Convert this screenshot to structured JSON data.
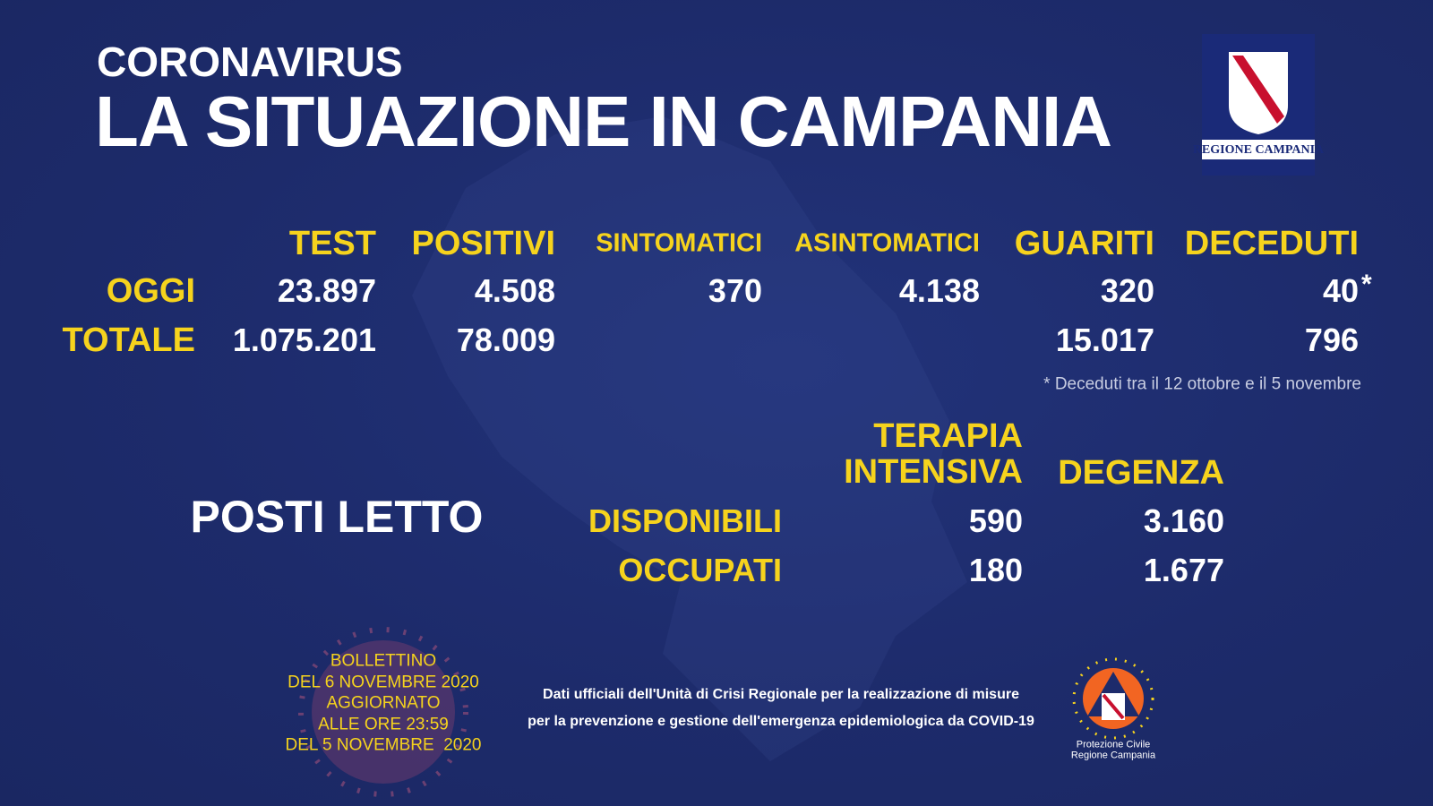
{
  "header": {
    "kicker": "CORONAVIRUS",
    "title": "LA SITUAZIONE IN CAMPANIA"
  },
  "logo": {
    "label": "REGIONE CAMPANIA"
  },
  "stats": {
    "columns": [
      "TEST",
      "POSITIVI",
      "SINTOMATICI",
      "ASINTOMATICI",
      "GUARITI",
      "DECEDUTI"
    ],
    "rows": [
      {
        "label": "OGGI",
        "values": [
          "23.897",
          "4.508",
          "370",
          "4.138",
          "320",
          "40"
        ]
      },
      {
        "label": "TOTALE",
        "values": [
          "1.075.201",
          "78.009",
          null,
          null,
          "15.017",
          "796"
        ]
      }
    ],
    "note_marker": "*",
    "footnote": "* Deceduti tra il 12 ottobre e il 5 novembre"
  },
  "beds": {
    "title": "POSTI LETTO",
    "columns": [
      "TERAPIA INTENSIVA",
      "DEGENZA"
    ],
    "rows": [
      {
        "label": "DISPONIBILI",
        "values": [
          "590",
          "3.160"
        ]
      },
      {
        "label": "OCCUPATI",
        "values": [
          "180",
          "1.677"
        ]
      }
    ]
  },
  "bulletin": {
    "lines": [
      "BOLLETTINO",
      "DEL 6 NOVEMBRE 2020",
      "AGGIORNATO",
      "ALLE ORE 23:59",
      "DEL 5 NOVEMBRE  2020"
    ]
  },
  "source": {
    "lines": [
      "Dati ufficiali dell'Unità di Crisi Regionale per la realizzazione di misure",
      "per la prevenzione e gestione dell'emergenza epidemiologica da COVID-19"
    ]
  },
  "civil_protection": {
    "lines": [
      "Protezione Civile",
      "Regione Campania"
    ]
  }
}
